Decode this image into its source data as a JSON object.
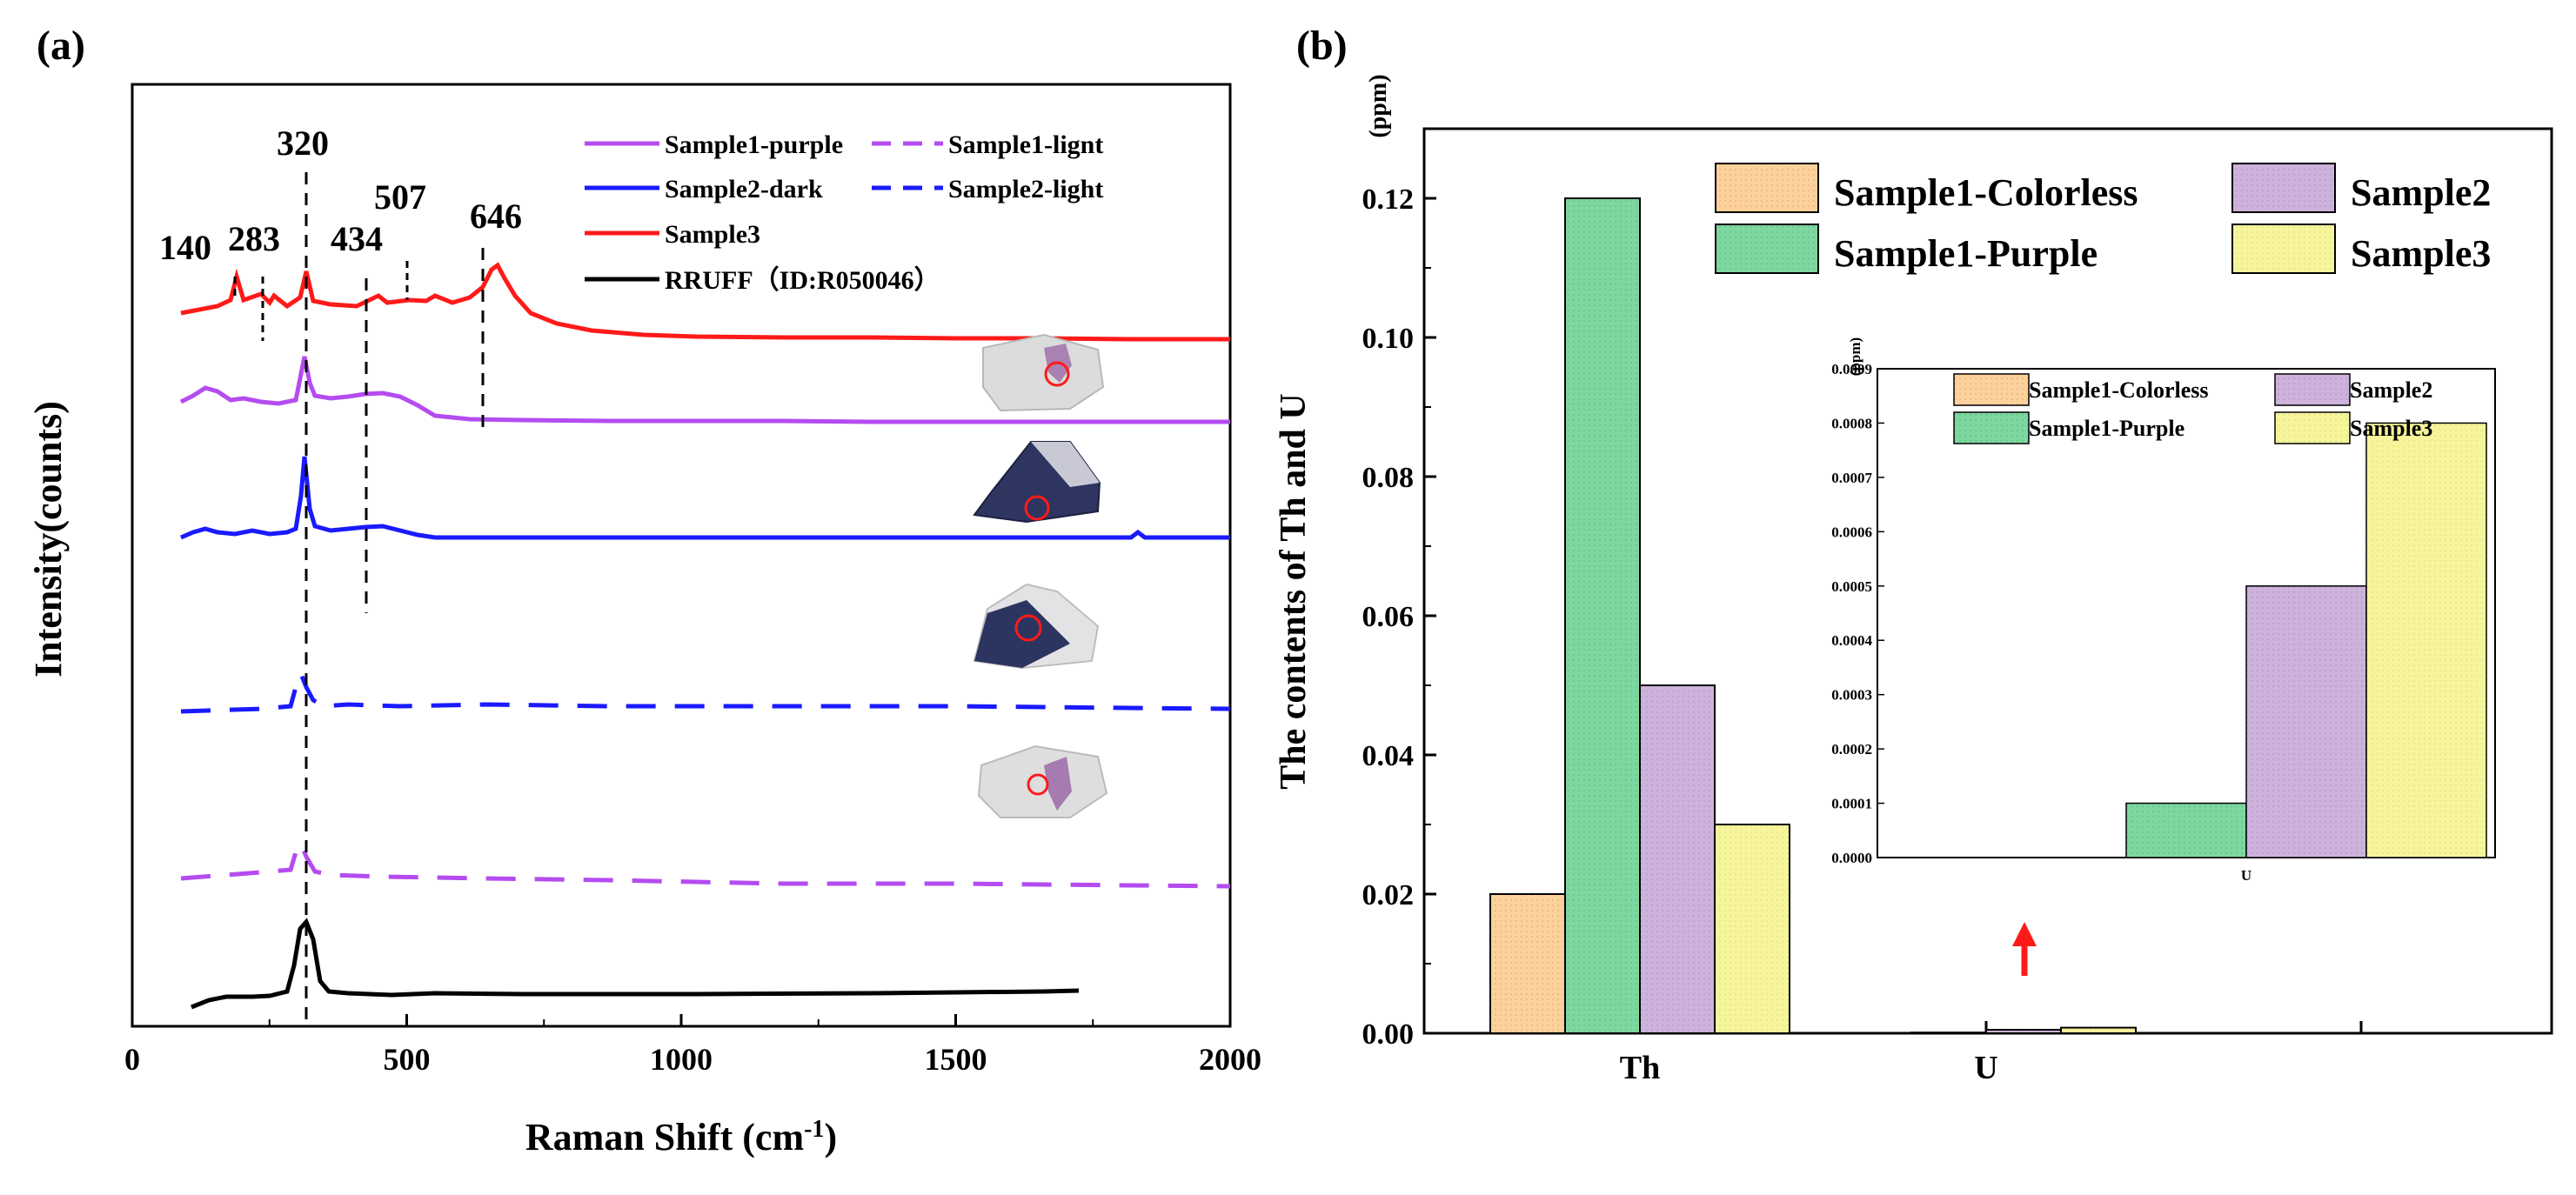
{
  "chart_data": [
    {
      "panel_label": "(a)",
      "type": "line",
      "xlabel": "Raman Shift (cm",
      "xlabel_sup": "-1",
      "xlabel_tail": ")",
      "ylabel": "Intensity(counts)",
      "xlim": [
        0,
        2000
      ],
      "xticks": [
        "0",
        "500",
        "1000",
        "1500",
        "2000"
      ],
      "peak_labels": [
        {
          "text": "140",
          "x": 140
        },
        {
          "text": "283",
          "x": 283
        },
        {
          "text": "320",
          "x": 320
        },
        {
          "text": "434",
          "x": 434
        },
        {
          "text": "507",
          "x": 507
        },
        {
          "text": "646",
          "x": 646
        }
      ],
      "legend": [
        {
          "name": "Sample1-purple",
          "color": "#b44cf0",
          "dash": "solid"
        },
        {
          "name": "Sample1-lignt",
          "color": "#b44cf0",
          "dash": "dashed"
        },
        {
          "name": "Sample2-dark",
          "color": "#1a1aff",
          "dash": "solid"
        },
        {
          "name": "Sample2-light",
          "color": "#1a1aff",
          "dash": "dashed"
        },
        {
          "name": "Sample3",
          "color": "#ff1a1a",
          "dash": "solid"
        },
        {
          "name": "RRUFF（ID:R050046）",
          "color": "#000000",
          "dash": "solid"
        }
      ]
    },
    {
      "panel_label": "(b)",
      "type": "bar",
      "ylabel": "The contents of Th and U",
      "yunit": "(ppm)",
      "categories": [
        "Th",
        "U"
      ],
      "ylim": [
        0,
        0.13
      ],
      "yticks": [
        "0.00",
        "0.02",
        "0.04",
        "0.06",
        "0.08",
        "0.10",
        "0.12"
      ],
      "series": [
        {
          "name": "Sample1-Colorless",
          "color": "#fcd19c",
          "values": [
            0.02,
            0.0
          ]
        },
        {
          "name": "Sample1-Purple",
          "color": "#7ed6a0",
          "values": [
            0.12,
            0.0001
          ]
        },
        {
          "name": "Sample2",
          "color": "#cdb2dc",
          "values": [
            0.05,
            0.0005
          ]
        },
        {
          "name": "Sample3",
          "color": "#f6f59c",
          "values": [
            0.03,
            0.0008
          ]
        }
      ],
      "inset": {
        "yunit": "(ppm)",
        "category": "U",
        "ylim": [
          0,
          0.0009
        ],
        "yticks": [
          "0.0000",
          "0.0001",
          "0.0002",
          "0.0003",
          "0.0004",
          "0.0005",
          "0.0006",
          "0.0007",
          "0.0008",
          "0.0009"
        ],
        "values": [
          0.0,
          0.0001,
          0.0005,
          0.0008
        ]
      },
      "arrow_color": "#ff1a1a"
    }
  ]
}
